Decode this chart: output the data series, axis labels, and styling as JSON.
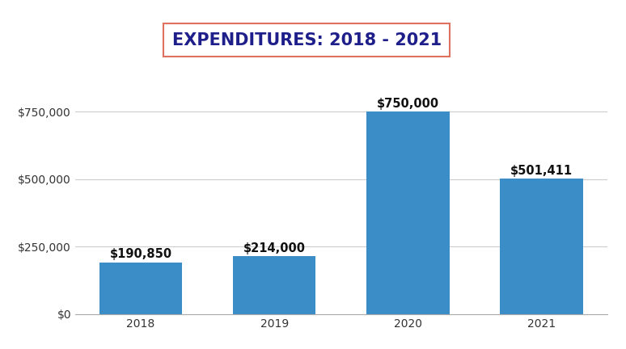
{
  "categories": [
    "2018",
    "2019",
    "2020",
    "2021"
  ],
  "values": [
    190850,
    214000,
    750000,
    501411
  ],
  "bar_color": "#3B8DC8",
  "title": "EXPENDITURES: 2018 - 2021",
  "title_color": "#1F1F8C",
  "title_fontsize": 15,
  "title_box_edge_color": "#E07060",
  "bar_labels": [
    "$190,850",
    "$214,000",
    "$750,000",
    "$501,411"
  ],
  "ytick_labels": [
    "$0",
    "$250,000",
    "$500,000",
    "$750,000"
  ],
  "ytick_values": [
    0,
    250000,
    500000,
    750000
  ],
  "ylim": [
    0,
    880000
  ],
  "background_color": "#FFFFFF",
  "grid_color": "#CCCCCC",
  "bar_label_fontsize": 10.5,
  "bar_label_color": "#111111",
  "tick_label_color": "#333333",
  "tick_fontsize": 10,
  "bar_width": 0.62
}
